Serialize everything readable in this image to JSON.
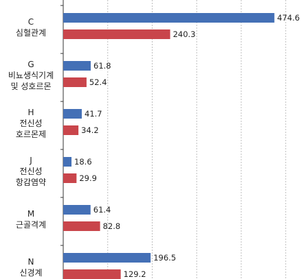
{
  "chart_data": {
    "type": "bar",
    "orientation": "horizontal",
    "grid": true,
    "grid_style": "dashed",
    "xlim": [
      0,
      500
    ],
    "colors": [
      "#4470b6",
      "#c9454b"
    ],
    "categories": [
      {
        "code": "C",
        "lines": [
          "심혈관계"
        ]
      },
      {
        "code": "G",
        "lines": [
          "비뇨생식기계",
          "및 성호르몬"
        ]
      },
      {
        "code": "H",
        "lines": [
          "전신성",
          "호르몬제"
        ]
      },
      {
        "code": "J",
        "lines": [
          "전신성",
          "항감염약"
        ]
      },
      {
        "code": "M",
        "lines": [
          "근골격계"
        ]
      },
      {
        "code": "N",
        "lines": [
          "신경계"
        ]
      }
    ],
    "series": [
      {
        "values": [
          474.6,
          61.8,
          41.7,
          18.6,
          61.4,
          196.5
        ],
        "labels": [
          "474.6",
          "61.8",
          "41.7",
          "18.6",
          "61.4",
          "196.5"
        ]
      },
      {
        "values": [
          240.3,
          52.4,
          34.2,
          29.9,
          82.8,
          129.2
        ],
        "labels": [
          "240.3",
          "52.4",
          "34.2",
          "29.9",
          "82.8",
          "129.2"
        ]
      }
    ]
  }
}
